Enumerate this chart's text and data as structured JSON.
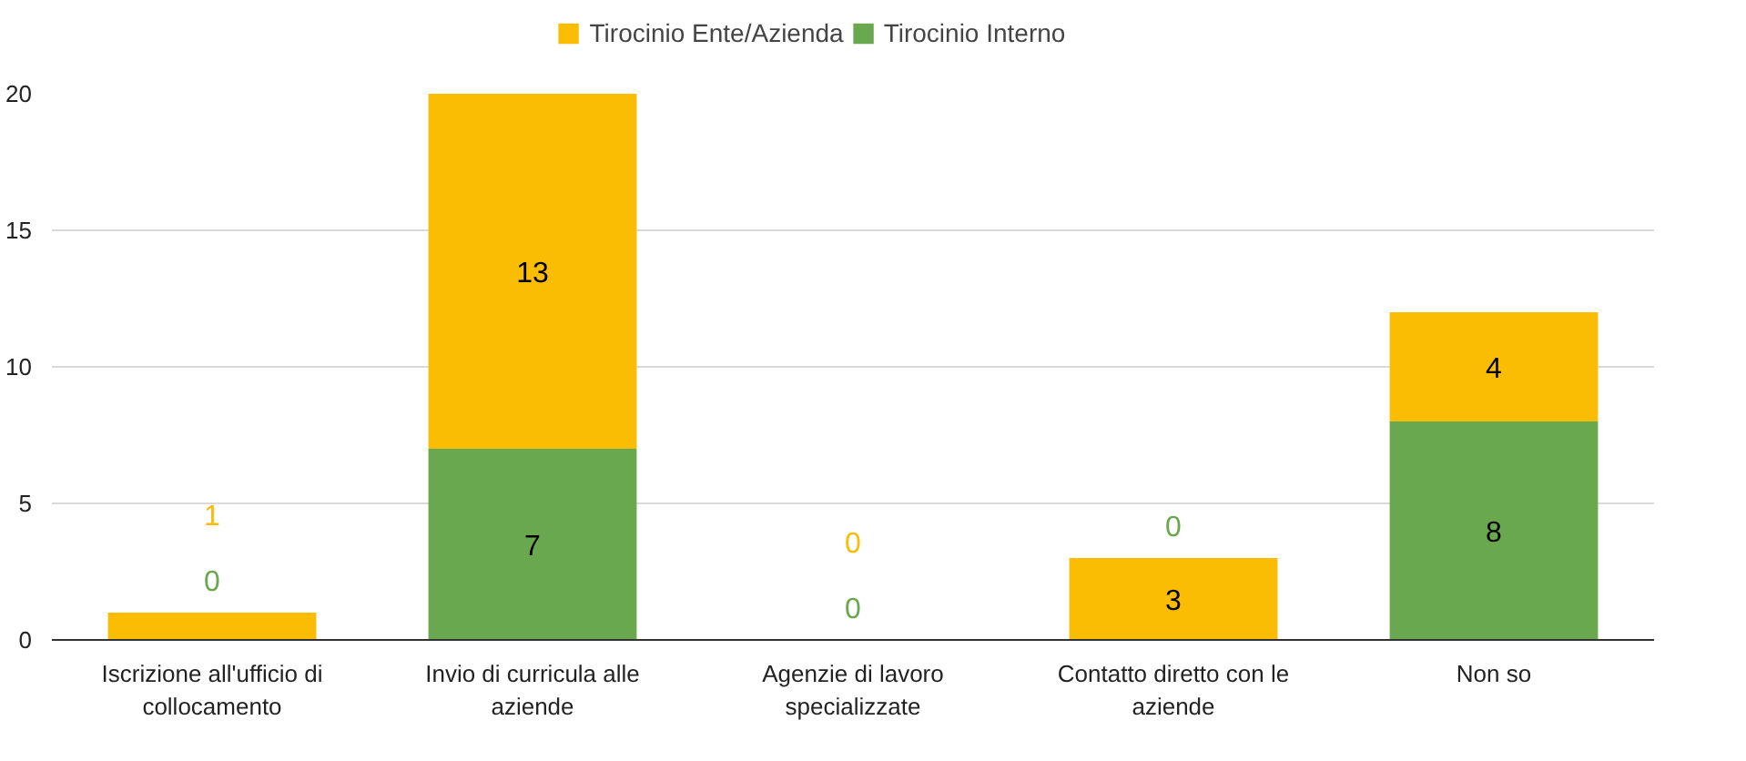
{
  "chart_data": {
    "type": "bar",
    "stacked": true,
    "categories": [
      "Iscrizione all'ufficio di collocamento",
      "Invio di curricula alle aziende",
      "Agenzie di lavoro specializzate",
      "Contatto diretto con le aziende",
      "Non so"
    ],
    "series": [
      {
        "name": "Tirocinio Interno",
        "color": "#6aa84f",
        "values": [
          0,
          7,
          0,
          0,
          8
        ]
      },
      {
        "name": "Tirocinio Ente/Azienda",
        "color": "#fbbc04",
        "values": [
          1,
          13,
          0,
          3,
          4
        ]
      }
    ],
    "ylim": [
      0,
      20
    ],
    "yticks": [
      0,
      5,
      10,
      15,
      20
    ],
    "grid": "y",
    "legend": "top",
    "data_labels": true
  }
}
